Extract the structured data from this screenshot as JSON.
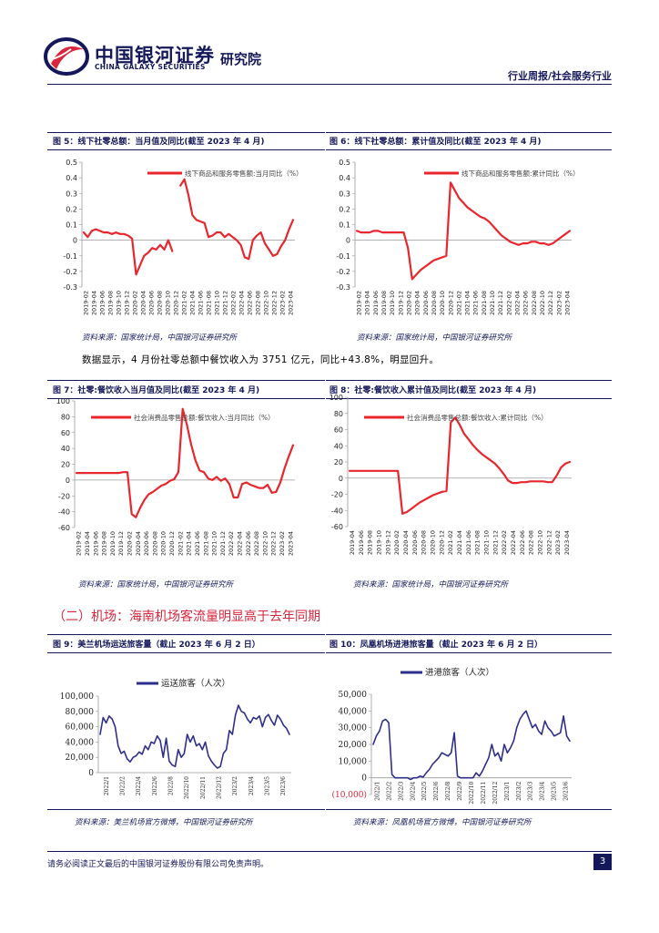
{
  "header": {
    "logo_cn": "中国银河证券",
    "logo_en": "CHINA GALAXY SECURITIES",
    "institute": "研究院",
    "category": "行业周报/社会服务行业",
    "colors": {
      "navy": "#14185a",
      "red": "#d7263d"
    }
  },
  "figures": {
    "fig5": {
      "title": "图 5：线下社零总额：当月值及同比(截至 2023 年 4 月)",
      "source": "资料来源：国家统计局，中国银河证券研究所"
    },
    "fig6": {
      "title": "图 6：线下社零总额：累计值及同比(截至 2023 年 4 月)",
      "source": "资料来源：国家统计局，中国银河证券研究所"
    },
    "fig7": {
      "title": "图 7：社零:餐饮收入当月值及同比(截至 2023 年 4 月)",
      "source": "资料来源：国家统计局，中国银河证券研究所"
    },
    "fig8": {
      "title": "图 8：社零:餐饮收入累计值及同比(截至 2023 年 4 月)",
      "source": "资料来源：国家统计局，中国银河证券研究所"
    },
    "fig9": {
      "title": "图 9：美兰机场运送旅客量（截止 2023 年 6 月 2 日）",
      "source": "资料来源：美兰机场官方微博，中国银河证券研究所"
    },
    "fig10": {
      "title": "图 10：凤凰机场进港旅客量（截止 2023 年 6 月 2 日）",
      "source": "资料来源：凤凰机场官方微博，中国银河证券研究所"
    }
  },
  "body": {
    "paragraph": "数据显示，4 月份社零总额中餐饮收入为 3751 亿元，同比+43.8%，明显回升。",
    "section_heading": "（二）机场：海南机场客流量明显高于去年同期"
  },
  "footer": {
    "disclaimer": "请务必阅读正文最后的中国银河证券股份有限公司免责声明。",
    "page_number": "3"
  },
  "chart_data": [
    {
      "id": "fig5",
      "type": "line",
      "series": [
        {
          "name": "线下商品和服务零售额:当月同比（%）",
          "color": "#e8262d",
          "values": [
            0.05,
            0.02,
            0.06,
            0.07,
            0.06,
            0.05,
            0.05,
            0.04,
            0.05,
            0.04,
            0.04,
            0.03,
            0.01,
            -0.22,
            -0.16,
            -0.1,
            -0.08,
            -0.05,
            -0.06,
            -0.03,
            -0.06,
            0.0,
            -0.07,
            null,
            0.35,
            0.39,
            0.29,
            0.16,
            0.13,
            0.12,
            0.11,
            0.02,
            0.03,
            0.05,
            0.05,
            0.02,
            0.04,
            0.02,
            0.0,
            -0.03,
            -0.11,
            -0.12,
            0.0,
            0.03,
            0.05,
            -0.02,
            -0.06,
            -0.1,
            -0.09,
            -0.04,
            0.0,
            0.07,
            0.13
          ]
        }
      ],
      "x_ticks": [
        "2019-02",
        "2019-04",
        "2019-06",
        "2019-08",
        "2019-10",
        "2019-12",
        "2020-02",
        "2020-04",
        "2020-06",
        "2020-08",
        "2020-10",
        "2020-12",
        "2021-02",
        "2021-04",
        "2021-06",
        "2021-08",
        "2021-10",
        "2021-12",
        "2022-02",
        "2022-04",
        "2022-06",
        "2022-08",
        "2022-10",
        "2022-12",
        "2023-02",
        "2023-04"
      ],
      "y_ticks": [
        "0.5",
        "0.4",
        "0.3",
        "0.2",
        "0.1",
        "0",
        "-0.1",
        "-0.2",
        "-0.3"
      ],
      "ylim": [
        -0.3,
        0.5
      ],
      "legend_position": "top-center"
    },
    {
      "id": "fig6",
      "type": "line",
      "series": [
        {
          "name": "线下商品和服务零售额:累计同比（%）",
          "color": "#e8262d",
          "values": [
            0.06,
            0.05,
            0.05,
            0.05,
            0.06,
            0.06,
            0.05,
            0.05,
            0.05,
            0.05,
            0.05,
            0.05,
            -0.05,
            -0.25,
            -0.22,
            -0.19,
            -0.17,
            -0.15,
            -0.13,
            -0.12,
            -0.11,
            -0.1,
            0.37,
            0.32,
            0.27,
            0.24,
            0.21,
            0.19,
            0.17,
            0.15,
            0.14,
            0.12,
            0.09,
            0.06,
            0.03,
            0.01,
            -0.01,
            -0.02,
            -0.03,
            -0.02,
            -0.02,
            -0.01,
            -0.01,
            -0.02,
            -0.02,
            -0.03,
            -0.02,
            0.0,
            0.02,
            0.04,
            0.06
          ]
        }
      ],
      "x_ticks": [
        "2019-02",
        "2019-04",
        "2019-06",
        "2019-08",
        "2019-10",
        "2019-12",
        "2020-02",
        "2020-04",
        "2020-06",
        "2020-08",
        "2020-10",
        "2020-12",
        "2021-02",
        "2021-04",
        "2021-06",
        "2021-08",
        "2021-10",
        "2021-12",
        "2022-02",
        "2022-04",
        "2022-06",
        "2022-08",
        "2022-10",
        "2022-12",
        "2023-02",
        "2023-04"
      ],
      "y_ticks": [
        "0.5",
        "0.4",
        "0.3",
        "0.2",
        "0.1",
        "0",
        "-0.1",
        "-0.2",
        "-0.3"
      ],
      "ylim": [
        -0.3,
        0.5
      ],
      "legend_position": "top-center"
    },
    {
      "id": "fig7",
      "type": "line",
      "series": [
        {
          "name": "社会消费品零售总额:餐饮收入:当月同比（%）",
          "color": "#e8262d",
          "values": [
            9,
            9,
            9,
            9,
            9,
            9,
            9,
            9,
            9,
            9,
            9,
            10,
            10,
            -43,
            -47,
            -35,
            -25,
            -18,
            -15,
            -11,
            -7,
            -5,
            -1,
            1,
            10,
            90,
            70,
            45,
            25,
            12,
            10,
            2,
            0,
            4,
            -1,
            2,
            -5,
            -22,
            -22,
            -5,
            -3,
            -6,
            -8,
            -10,
            -10,
            -6,
            -16,
            -15,
            -3,
            15,
            30,
            44
          ]
        }
      ],
      "x_ticks": [
        "2019-02",
        "2019-04",
        "2019-06",
        "2019-08",
        "2019-10",
        "2019-12",
        "2020-02",
        "2020-04",
        "2020-06",
        "2020-08",
        "2020-10",
        "2020-12",
        "2021-02",
        "2021-04",
        "2021-06",
        "2021-08",
        "2021-10",
        "2021-12",
        "2022-02",
        "2022-04",
        "2022-06",
        "2022-08",
        "2022-10",
        "2022-12",
        "2023-02",
        "2023-04"
      ],
      "y_ticks": [
        "100",
        "80",
        "60",
        "40",
        "20",
        "0",
        "-20",
        "-40",
        "-60"
      ],
      "ylim": [
        -60,
        100
      ],
      "legend_position": "top-center"
    },
    {
      "id": "fig8",
      "type": "line",
      "series": [
        {
          "name": "社会消费品零售总额:餐饮收入:累计同比（%）",
          "color": "#e8262d",
          "values": [
            9,
            9,
            9,
            9,
            9,
            9,
            9,
            9,
            9,
            9,
            9,
            9,
            -44,
            -42,
            -38,
            -34,
            -30,
            -27,
            -24,
            -21,
            -19,
            -17,
            -16,
            69,
            75,
            66,
            55,
            48,
            41,
            35,
            30,
            26,
            22,
            18,
            12,
            5,
            -3,
            -6,
            -6,
            -5,
            -5,
            -4,
            -4,
            -4,
            -4,
            -5,
            -5,
            3,
            13,
            18,
            20
          ]
        }
      ],
      "x_ticks": [
        "2019-04",
        "2019-06",
        "2019-08",
        "2019-10",
        "2019-12",
        "2020-02",
        "2020-04",
        "2020-06",
        "2020-08",
        "2020-10",
        "2020-12",
        "2021-02",
        "2021-04",
        "2021-06",
        "2021-08",
        "2021-10",
        "2021-12",
        "2022-02",
        "2022-04",
        "2022-06",
        "2022-08",
        "2022-10",
        "2022-12",
        "2023-02",
        "2023-04"
      ],
      "y_ticks": [
        "100",
        "80",
        "60",
        "40",
        "20",
        "0",
        "-20",
        "-40",
        "-60"
      ],
      "ylim": [
        -60,
        100
      ],
      "legend_position": "top-center"
    },
    {
      "id": "fig9",
      "type": "line",
      "series": [
        {
          "name": "运送旅客（人次）",
          "color": "#2e2f8c",
          "values": [
            50000,
            72000,
            65000,
            74000,
            70000,
            60000,
            35000,
            25000,
            28000,
            18000,
            14000,
            20000,
            22000,
            27000,
            24000,
            35000,
            30000,
            40000,
            38000,
            48000,
            42000,
            20000,
            45000,
            15000,
            10000,
            8000,
            30000,
            20000,
            25000,
            50000,
            40000,
            48000,
            35000,
            38000,
            30000,
            40000,
            22000,
            15000,
            10000,
            6000,
            8000,
            25000,
            30000,
            55000,
            50000,
            75000,
            88000,
            80000,
            78000,
            70000,
            65000,
            72000,
            70000,
            74000,
            60000,
            72000,
            76000,
            68000,
            62000,
            75000,
            70000,
            62000,
            58000,
            50000
          ]
        }
      ],
      "x_ticks": [
        "2022/1",
        "2022/2",
        "2022/4",
        "2022/6",
        "2022/8",
        "2022/10",
        "2022/11",
        "2022/12",
        "2023/2",
        "2023/4",
        "2023/5",
        "2023/6"
      ],
      "y_ticks": [
        "100,000",
        "80,000",
        "60,000",
        "40,000",
        "20,000",
        "0"
      ],
      "ylim": [
        0,
        100000
      ],
      "legend_position": "top-left"
    },
    {
      "id": "fig10",
      "type": "line",
      "series": [
        {
          "name": "进港旅客（人次）",
          "color": "#2e2f8c",
          "values": [
            20000,
            25000,
            28000,
            34000,
            35000,
            33000,
            2000,
            0,
            0,
            0,
            0,
            0,
            -1000,
            0,
            0,
            1000,
            500,
            3000,
            5000,
            8000,
            10000,
            12000,
            15000,
            14000,
            13000,
            15000,
            27000,
            1000,
            0,
            0,
            0,
            0,
            0,
            3000,
            1000,
            4000,
            8000,
            12000,
            20000,
            13000,
            15000,
            10000,
            20000,
            15000,
            18000,
            22000,
            30000,
            35000,
            38000,
            40000,
            35000,
            30000,
            32000,
            28000,
            26000,
            34000,
            30000,
            28000,
            25000,
            26000,
            27000,
            37000,
            25000,
            22000
          ]
        }
      ],
      "x_ticks": [
        "2022/1",
        "2022/2",
        "2022/3",
        "2022/4",
        "2022/5",
        "2022/6",
        "2022/8",
        "2022/9",
        "2022/10",
        "2022/11",
        "2022/12",
        "2023/1",
        "2023/2",
        "2023/3",
        "2023/4",
        "2023/5",
        "2023/6"
      ],
      "y_ticks": [
        "50,000",
        "40,000",
        "30,000",
        "20,000",
        "10,000",
        "0",
        "(10,000)"
      ],
      "ylim": [
        -10000,
        50000
      ],
      "legend_position": "top-center"
    }
  ]
}
